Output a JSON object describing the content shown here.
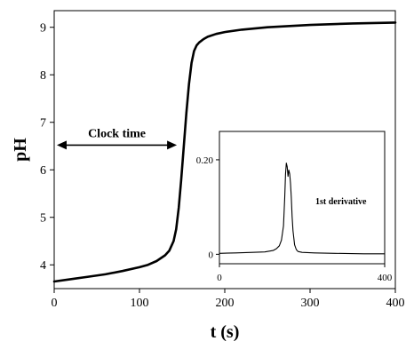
{
  "chart_data": {
    "type": "line",
    "xlabel": "t (s)",
    "ylabel": "pH",
    "xlim": [
      0,
      400
    ],
    "ylim": [
      3.5,
      9.35
    ],
    "xticks": [
      0,
      100,
      200,
      300,
      400
    ],
    "yticks": [
      4,
      5,
      6,
      7,
      8,
      9
    ],
    "series": [
      {
        "x": [
          0,
          20,
          40,
          60,
          80,
          100,
          110,
          120,
          130,
          135,
          140,
          143,
          146,
          149,
          152,
          155,
          158,
          161,
          164,
          167,
          170,
          175,
          180,
          190,
          200,
          220,
          250,
          300,
          350,
          400
        ],
        "y": [
          3.65,
          3.7,
          3.75,
          3.8,
          3.87,
          3.95,
          4.0,
          4.08,
          4.2,
          4.3,
          4.5,
          4.75,
          5.2,
          5.8,
          6.5,
          7.2,
          7.8,
          8.25,
          8.5,
          8.62,
          8.68,
          8.75,
          8.8,
          8.86,
          8.9,
          8.95,
          9.0,
          9.05,
          9.08,
          9.1
        ]
      }
    ],
    "annotations": [
      {
        "text": "Clock time",
        "x_start": 0,
        "x_end": 148,
        "y": 6.52
      }
    ],
    "inset": {
      "type": "line",
      "label": "1st derivative",
      "xlim": [
        0,
        400
      ],
      "ylim": [
        -0.02,
        0.26
      ],
      "xticks": [
        0,
        400
      ],
      "yticks": [
        0,
        0.2
      ],
      "ytick_labels": [
        "0",
        "0.20"
      ],
      "series": [
        {
          "x": [
            0,
            40,
            80,
            110,
            130,
            138,
            145,
            150,
            155,
            158,
            160,
            162,
            164,
            166,
            168,
            170,
            172,
            174,
            176,
            178,
            182,
            186,
            190,
            200,
            230,
            280,
            350,
            400
          ],
          "y": [
            0.002,
            0.003,
            0.004,
            0.005,
            0.008,
            0.012,
            0.018,
            0.03,
            0.06,
            0.12,
            0.17,
            0.193,
            0.185,
            0.165,
            0.178,
            0.17,
            0.15,
            0.12,
            0.08,
            0.05,
            0.02,
            0.01,
            0.006,
            0.004,
            0.003,
            0.002,
            0.001,
            0.001
          ]
        }
      ]
    }
  }
}
